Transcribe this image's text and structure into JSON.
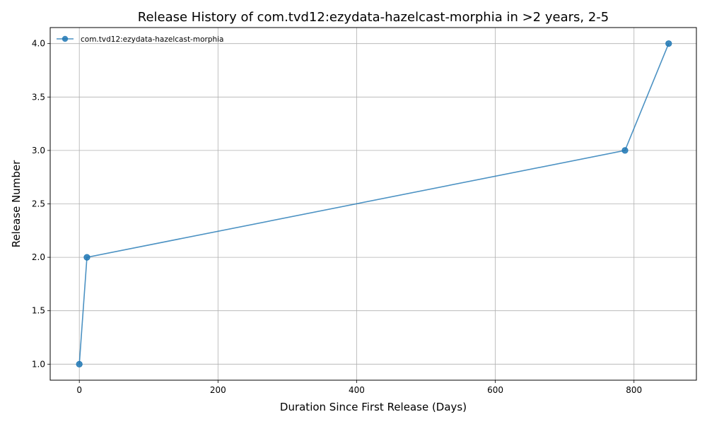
{
  "chart_data": {
    "type": "line",
    "title": "Release History of com.tvd12:ezydata-hazelcast-morphia in >2 years, 2-5",
    "xlabel": "Duration Since First Release (Days)",
    "ylabel": "Release Number",
    "xlim": [
      -42,
      890
    ],
    "ylim": [
      0.85,
      4.15
    ],
    "x_ticks": [
      0,
      200,
      400,
      600,
      800
    ],
    "y_ticks": [
      1.0,
      1.5,
      2.0,
      2.5,
      3.0,
      3.5,
      4.0
    ],
    "x_tick_labels": [
      "0",
      "200",
      "400",
      "600",
      "800"
    ],
    "y_tick_labels": [
      "1.0",
      "1.5",
      "2.0",
      "2.5",
      "3.0",
      "3.5",
      "4.0"
    ],
    "grid": true,
    "legend_position": "top-left",
    "series": [
      {
        "name": "com.tvd12:ezydata-hazelcast-morphia",
        "color": "#1f77b4",
        "marker": "circle",
        "x": [
          0,
          11,
          787,
          850
        ],
        "y": [
          1,
          2,
          3,
          4
        ]
      }
    ]
  }
}
